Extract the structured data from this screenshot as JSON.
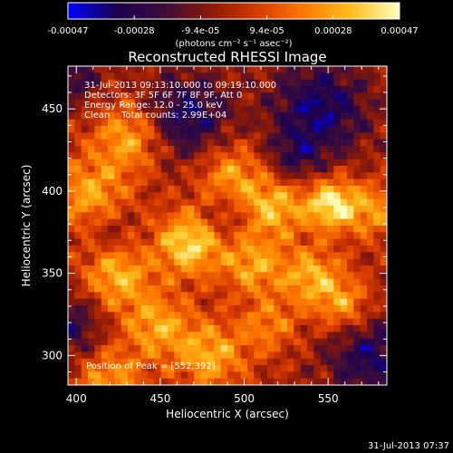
{
  "chart_data": {
    "type": "heatmap",
    "title": "Reconstructed RHESSI Image",
    "xlabel": "Heliocentric X (arcsec)",
    "ylabel": "Heliocentric Y (arcsec)",
    "xlim": [
      395,
      585
    ],
    "ylim": [
      282,
      476
    ],
    "x_ticks": [
      400,
      450,
      500,
      550
    ],
    "y_ticks": [
      300,
      350,
      400,
      450
    ],
    "annotations": [
      "31-Jul-2013 09:13:10.000 to 09:19:10.000",
      "Detectors: 3F 5F 6F 7F 8F 9F, Att 0",
      "Energy Range: 12.0 - 25.0 keV",
      "Clean    Total counts: 2.99E+04"
    ],
    "peak_label": "Position of Peak = [552,392]",
    "peak": [
      552,
      392
    ],
    "colorbar": {
      "range": [
        -0.00047,
        0.00047
      ],
      "tick_labels": [
        "-0.00047",
        "-0.00028",
        "-9.4e-05",
        "9.4e-05",
        "0.00028",
        "0.00047"
      ],
      "unit": "(photons cm⁻² s⁻¹ asec⁻²)",
      "colors": [
        "#0000ff",
        "#1a0050",
        "#3a0c3c",
        "#8a1808",
        "#d83a00",
        "#ff7a00",
        "#ffc020",
        "#ffffc0"
      ]
    },
    "blobs": [
      {
        "x": 467,
        "y": 368,
        "a": 1.05,
        "s": 14
      },
      {
        "x": 552,
        "y": 392,
        "a": 1.15,
        "s": 11
      },
      {
        "x": 424,
        "y": 348,
        "a": 0.85,
        "s": 14
      },
      {
        "x": 408,
        "y": 398,
        "a": 0.75,
        "s": 16
      },
      {
        "x": 432,
        "y": 433,
        "a": 0.8,
        "s": 15
      },
      {
        "x": 492,
        "y": 410,
        "a": 0.7,
        "s": 14
      },
      {
        "x": 518,
        "y": 390,
        "a": 0.85,
        "s": 13
      },
      {
        "x": 505,
        "y": 355,
        "a": 0.75,
        "s": 13
      },
      {
        "x": 540,
        "y": 348,
        "a": 0.8,
        "s": 13
      },
      {
        "x": 560,
        "y": 330,
        "a": 0.7,
        "s": 12
      },
      {
        "x": 578,
        "y": 388,
        "a": 0.65,
        "s": 12
      },
      {
        "x": 480,
        "y": 300,
        "a": 0.8,
        "s": 15
      },
      {
        "x": 448,
        "y": 318,
        "a": 0.75,
        "s": 14
      },
      {
        "x": 420,
        "y": 285,
        "a": 0.7,
        "s": 14
      },
      {
        "x": 515,
        "y": 318,
        "a": 0.55,
        "s": 12
      },
      {
        "x": 465,
        "y": 445,
        "a": -0.8,
        "s": 18
      },
      {
        "x": 545,
        "y": 450,
        "a": -0.85,
        "s": 20
      },
      {
        "x": 575,
        "y": 300,
        "a": -0.75,
        "s": 18
      },
      {
        "x": 420,
        "y": 375,
        "a": -0.3,
        "s": 10
      },
      {
        "x": 488,
        "y": 385,
        "a": -0.35,
        "s": 9
      },
      {
        "x": 396,
        "y": 318,
        "a": -0.6,
        "s": 14
      },
      {
        "x": 530,
        "y": 420,
        "a": -0.5,
        "s": 11
      },
      {
        "x": 398,
        "y": 470,
        "a": -0.55,
        "s": 12
      }
    ]
  },
  "footer": {
    "timestamp": "31-Jul-2013 07:37"
  }
}
